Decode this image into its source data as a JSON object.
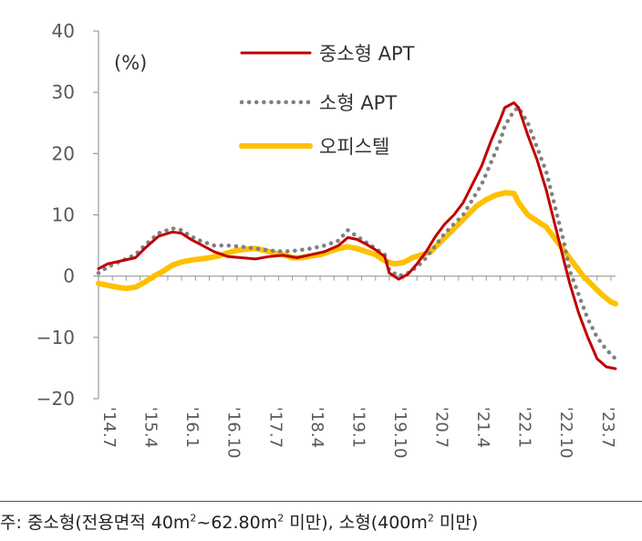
{
  "chart_data": {
    "type": "line",
    "unit_label": "(%)",
    "ylim": [
      -20,
      40
    ],
    "yticks": [
      "40",
      "30",
      "20",
      "10",
      "0",
      "−10",
      "−20"
    ],
    "ytick_values": [
      40,
      30,
      20,
      10,
      0,
      -10,
      -20
    ],
    "xticks": [
      "'14.7",
      "'15.4",
      "'16.1",
      "'16.10",
      "'17.7",
      "'18.4",
      "'19.1",
      "'19.10",
      "'20.7",
      "'21.4",
      "'22.1",
      "'22.10",
      "'23.7"
    ],
    "xtick_index": [
      0,
      9,
      18,
      27,
      36,
      45,
      54,
      63,
      72,
      81,
      90,
      99,
      108
    ],
    "legend_position": "top-center",
    "series": [
      {
        "name": "중소형 APT",
        "color": "#C00000",
        "style": "solid",
        "points": [
          [
            0,
            1.2
          ],
          [
            2,
            2
          ],
          [
            5,
            2.5
          ],
          [
            8,
            3
          ],
          [
            10,
            4.5
          ],
          [
            13,
            6.5
          ],
          [
            16,
            7.2
          ],
          [
            18,
            7
          ],
          [
            20,
            6
          ],
          [
            22,
            5.2
          ],
          [
            25,
            4
          ],
          [
            28,
            3.2
          ],
          [
            31,
            3
          ],
          [
            34,
            2.8
          ],
          [
            37,
            3.2
          ],
          [
            40,
            3.4
          ],
          [
            43,
            3
          ],
          [
            46,
            3.5
          ],
          [
            49,
            4
          ],
          [
            52,
            5
          ],
          [
            54,
            6.3
          ],
          [
            56,
            6
          ],
          [
            58,
            5.2
          ],
          [
            60,
            4.3
          ],
          [
            62,
            3.2
          ],
          [
            63,
            0.5
          ],
          [
            65,
            -0.5
          ],
          [
            67,
            0.3
          ],
          [
            69,
            2
          ],
          [
            71,
            4
          ],
          [
            73,
            6.5
          ],
          [
            75,
            8.5
          ],
          [
            77,
            10
          ],
          [
            79,
            12
          ],
          [
            81,
            15
          ],
          [
            83,
            18
          ],
          [
            85,
            22
          ],
          [
            87,
            25.5
          ],
          [
            88,
            27.5
          ],
          [
            90,
            28.3
          ],
          [
            91,
            27.5
          ],
          [
            93,
            23
          ],
          [
            95,
            19
          ],
          [
            97,
            14
          ],
          [
            99,
            8
          ],
          [
            101,
            2
          ],
          [
            102,
            -1
          ],
          [
            104,
            -6
          ],
          [
            106,
            -10
          ],
          [
            108,
            -13.5
          ],
          [
            110,
            -14.8
          ],
          [
            112,
            -15.1
          ]
        ]
      },
      {
        "name": "소형 APT",
        "color": "#808080",
        "style": "dotted",
        "points": [
          [
            0,
            0.5
          ],
          [
            2,
            1.5
          ],
          [
            5,
            2.5
          ],
          [
            8,
            3.5
          ],
          [
            10,
            5
          ],
          [
            13,
            7
          ],
          [
            16,
            7.8
          ],
          [
            18,
            7.5
          ],
          [
            20,
            6.5
          ],
          [
            22,
            5.8
          ],
          [
            25,
            5
          ],
          [
            28,
            5
          ],
          [
            31,
            4.8
          ],
          [
            34,
            4.5
          ],
          [
            37,
            4.2
          ],
          [
            40,
            4
          ],
          [
            43,
            4.2
          ],
          [
            46,
            4.5
          ],
          [
            49,
            5
          ],
          [
            52,
            5.8
          ],
          [
            54,
            7.5
          ],
          [
            56,
            6.5
          ],
          [
            58,
            5.5
          ],
          [
            60,
            4.5
          ],
          [
            62,
            3.5
          ],
          [
            63,
            1
          ],
          [
            65,
            0
          ],
          [
            67,
            0.5
          ],
          [
            69,
            1.5
          ],
          [
            71,
            3
          ],
          [
            73,
            5
          ],
          [
            75,
            7
          ],
          [
            77,
            8.5
          ],
          [
            79,
            10
          ],
          [
            81,
            12.5
          ],
          [
            83,
            15
          ],
          [
            85,
            18.5
          ],
          [
            87,
            22
          ],
          [
            88,
            24.5
          ],
          [
            90,
            27
          ],
          [
            91,
            27.5
          ],
          [
            93,
            25
          ],
          [
            95,
            21
          ],
          [
            97,
            17
          ],
          [
            99,
            11
          ],
          [
            101,
            5
          ],
          [
            102,
            1
          ],
          [
            104,
            -3
          ],
          [
            106,
            -7
          ],
          [
            108,
            -10
          ],
          [
            110,
            -12
          ],
          [
            112,
            -13.5
          ]
        ]
      },
      {
        "name": "오피스텔",
        "color": "#FFC000",
        "style": "solid",
        "points": [
          [
            0,
            -1.2
          ],
          [
            2,
            -1.5
          ],
          [
            4,
            -1.8
          ],
          [
            6,
            -2
          ],
          [
            8,
            -1.8
          ],
          [
            10,
            -1
          ],
          [
            12,
            0
          ],
          [
            14,
            0.8
          ],
          [
            16,
            1.8
          ],
          [
            18,
            2.3
          ],
          [
            20,
            2.6
          ],
          [
            22,
            2.8
          ],
          [
            24,
            3
          ],
          [
            26,
            3.3
          ],
          [
            28,
            3.8
          ],
          [
            30,
            4.2
          ],
          [
            32,
            4.4
          ],
          [
            34,
            4.5
          ],
          [
            36,
            4.2
          ],
          [
            38,
            3.8
          ],
          [
            40,
            3.5
          ],
          [
            42,
            3
          ],
          [
            44,
            3
          ],
          [
            46,
            3.3
          ],
          [
            48,
            3.5
          ],
          [
            50,
            4
          ],
          [
            52,
            4.5
          ],
          [
            54,
            4.8
          ],
          [
            56,
            4.5
          ],
          [
            58,
            4
          ],
          [
            60,
            3.5
          ],
          [
            62,
            2.5
          ],
          [
            64,
            2
          ],
          [
            66,
            2.2
          ],
          [
            68,
            3
          ],
          [
            70,
            3.5
          ],
          [
            72,
            4
          ],
          [
            74,
            5.5
          ],
          [
            76,
            7
          ],
          [
            78,
            8.5
          ],
          [
            80,
            10
          ],
          [
            82,
            11.5
          ],
          [
            84,
            12.5
          ],
          [
            86,
            13.2
          ],
          [
            88,
            13.6
          ],
          [
            90,
            13.5
          ],
          [
            91,
            12
          ],
          [
            93,
            10
          ],
          [
            95,
            9
          ],
          [
            97,
            8
          ],
          [
            99,
            6
          ],
          [
            101,
            4
          ],
          [
            103,
            2
          ],
          [
            105,
            0
          ],
          [
            107,
            -1.5
          ],
          [
            109,
            -3
          ],
          [
            111,
            -4.2
          ],
          [
            112,
            -4.5
          ]
        ]
      }
    ]
  },
  "footnote": {
    "prefix": "주: 중소형(전용면적 40m",
    "sup1": "2",
    "mid": "~62.80m",
    "sup2": "2",
    "mid2": " 미만), 소형(400m",
    "sup3": "2",
    "suffix": " 미만)"
  }
}
